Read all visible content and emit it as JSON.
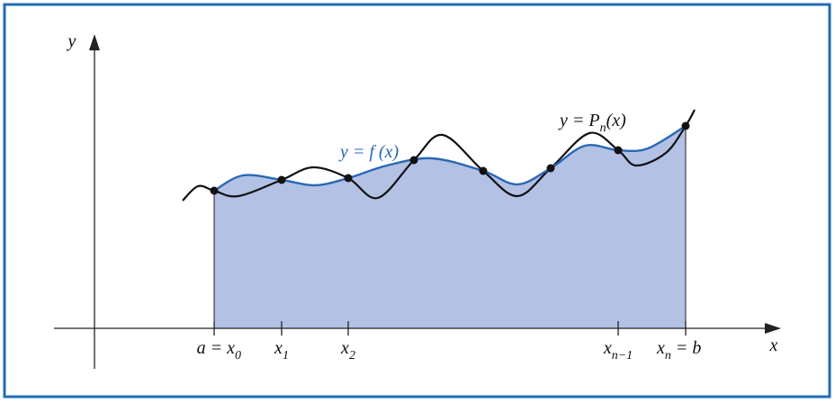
{
  "axes": {
    "x_label": "x",
    "y_label": "y"
  },
  "curves": {
    "f_label": {
      "before": "y = f (x)"
    },
    "p_label": {
      "before": "y = P",
      "sub": "n",
      "after": "(x)"
    }
  },
  "ticks": [
    {
      "before": "a = x",
      "sub": "0"
    },
    {
      "before": "x",
      "sub": "1"
    },
    {
      "before": "x",
      "sub": "2"
    },
    {
      "before": "x",
      "sub": "n−1"
    },
    {
      "before": "x",
      "sub": "n",
      "after": " = b"
    }
  ]
}
